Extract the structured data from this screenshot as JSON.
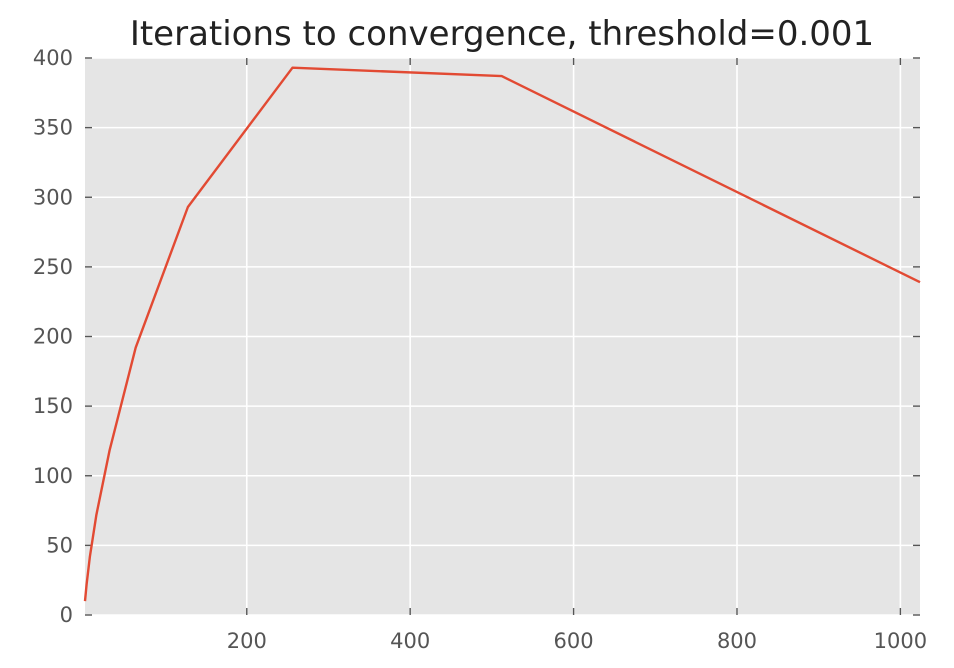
{
  "chart_data": {
    "type": "line",
    "title": "Iterations to convergence, threshold=0.001",
    "xlabel": "",
    "ylabel": "",
    "xlim": [
      2,
      1024
    ],
    "ylim": [
      0,
      400
    ],
    "x_ticks": [
      200,
      400,
      600,
      800,
      1000
    ],
    "y_ticks": [
      0,
      50,
      100,
      150,
      200,
      250,
      300,
      350,
      400
    ],
    "grid": true,
    "style": "ggplot",
    "colors": {
      "plot_background": "#e5e5e5",
      "grid": "#ffffff",
      "line": "#e24a33",
      "tick": "#555555"
    },
    "series": [
      {
        "x": [
          2,
          4,
          8,
          16,
          32,
          64,
          128,
          256,
          512,
          1024
        ],
        "y": [
          10,
          22,
          42,
          72,
          118,
          192,
          293,
          393,
          387,
          239
        ]
      }
    ]
  }
}
